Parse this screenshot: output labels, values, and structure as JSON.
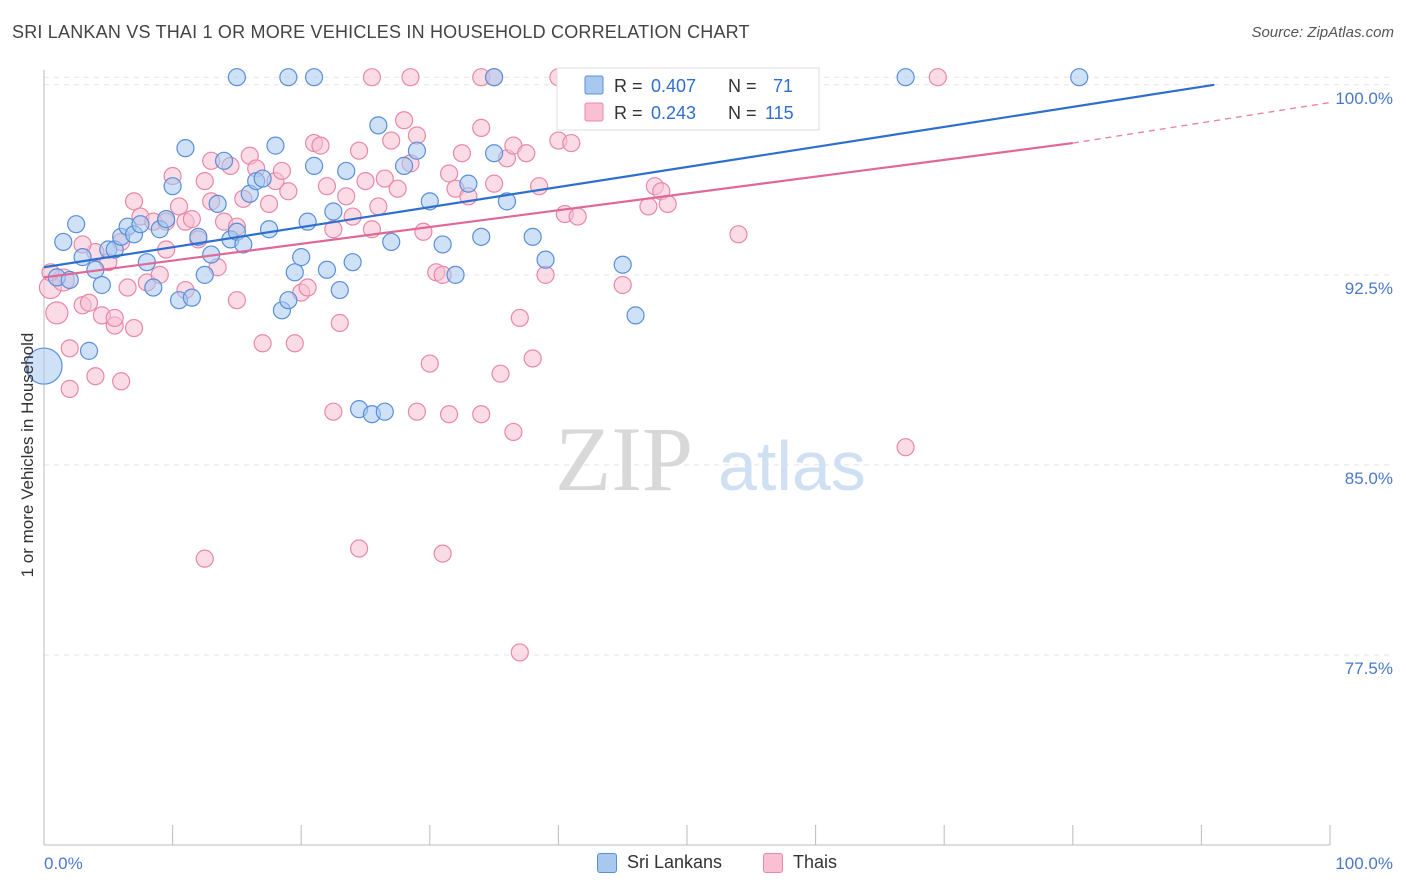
{
  "title": "SRI LANKAN VS THAI 1 OR MORE VEHICLES IN HOUSEHOLD CORRELATION CHART",
  "source": "Source: ZipAtlas.com",
  "watermark": {
    "zip": "ZIP",
    "atlas": "atlas"
  },
  "colors": {
    "blue_fill": "#a8c8f0",
    "blue_stroke": "#5a8fd8",
    "blue_line": "#2e6fce",
    "pink_fill": "#f8c0d2",
    "pink_stroke": "#e888a8",
    "pink_line": "#e06898",
    "tick_text": "#4a78c9"
  },
  "legend": {
    "r_label": "R =",
    "n_label": "N =",
    "entries": [
      {
        "r": "0.407",
        "n": "71",
        "color": "blue"
      },
      {
        "r": "0.243",
        "n": "115",
        "color": "pink"
      }
    ]
  },
  "bottom_legend": [
    {
      "label": "Sri Lankans",
      "color": "blue"
    },
    {
      "label": "Thais",
      "color": "pink"
    }
  ],
  "chart_data": {
    "type": "scatter",
    "title": "SRI LANKAN VS THAI 1 OR MORE VEHICLES IN HOUSEHOLD CORRELATION CHART",
    "xlabel": "",
    "ylabel": "1 or more Vehicles in Household",
    "xlim": [
      0,
      100
    ],
    "ylim": [
      70,
      100.9
    ],
    "x_tick_labels": [
      "0.0%",
      "100.0%"
    ],
    "y_ticks": [
      77.5,
      85.0,
      92.5,
      100.0
    ],
    "y_tick_labels": [
      "77.5%",
      "85.0%",
      "92.5%",
      "100.0%"
    ],
    "grid": true,
    "series": [
      {
        "name": "Sri Lankans",
        "color": "blue",
        "trend": {
          "x0": 0,
          "y0": 92.8,
          "x1": 91,
          "y1": 100.0,
          "dashed_to": null
        },
        "points": [
          [
            0.0,
            88.9
          ],
          [
            1.0,
            92.4
          ],
          [
            1.5,
            93.8
          ],
          [
            2.0,
            92.3
          ],
          [
            2.5,
            94.5
          ],
          [
            3.0,
            93.2
          ],
          [
            3.5,
            89.5
          ],
          [
            4.0,
            92.7
          ],
          [
            4.5,
            92.1
          ],
          [
            5.0,
            93.5
          ],
          [
            5.5,
            93.5
          ],
          [
            6.0,
            94.0
          ],
          [
            6.5,
            94.4
          ],
          [
            7.0,
            94.1
          ],
          [
            7.5,
            94.5
          ],
          [
            8.0,
            93.0
          ],
          [
            8.5,
            92.0
          ],
          [
            9.0,
            94.3
          ],
          [
            9.5,
            94.7
          ],
          [
            10.0,
            96.0
          ],
          [
            10.5,
            91.5
          ],
          [
            11.0,
            97.5
          ],
          [
            11.5,
            91.6
          ],
          [
            12.0,
            94.0
          ],
          [
            12.5,
            92.5
          ],
          [
            13.0,
            93.3
          ],
          [
            13.5,
            95.3
          ],
          [
            14.0,
            97.0
          ],
          [
            14.5,
            93.9
          ],
          [
            15.0,
            94.2
          ],
          [
            15.5,
            93.7
          ],
          [
            16.0,
            95.7
          ],
          [
            16.5,
            96.2
          ],
          [
            17.0,
            96.3
          ],
          [
            17.5,
            94.3
          ],
          [
            18.0,
            97.6
          ],
          [
            18.5,
            91.1
          ],
          [
            19.0,
            91.5
          ],
          [
            19.5,
            92.6
          ],
          [
            20.0,
            93.2
          ],
          [
            20.5,
            94.6
          ],
          [
            21.0,
            96.8
          ],
          [
            22.0,
            92.7
          ],
          [
            22.5,
            95.0
          ],
          [
            23.0,
            91.9
          ],
          [
            23.5,
            96.6
          ],
          [
            24.0,
            93.0
          ],
          [
            24.5,
            87.2
          ],
          [
            25.5,
            87.0
          ],
          [
            26.0,
            98.4
          ],
          [
            26.5,
            87.1
          ],
          [
            27.0,
            93.8
          ],
          [
            28.0,
            96.8
          ],
          [
            29.0,
            97.4
          ],
          [
            30.0,
            95.4
          ],
          [
            31.0,
            93.7
          ],
          [
            32.0,
            92.5
          ],
          [
            33.0,
            96.1
          ],
          [
            34.0,
            94.0
          ],
          [
            35.0,
            97.3
          ],
          [
            36.0,
            95.4
          ],
          [
            38.0,
            94.0
          ],
          [
            39.0,
            93.1
          ],
          [
            45.0,
            92.9
          ],
          [
            46.0,
            90.9
          ],
          [
            15.0,
            100.3
          ],
          [
            19.0,
            100.3
          ],
          [
            21.0,
            100.3
          ],
          [
            35.0,
            100.3
          ],
          [
            67.0,
            100.3
          ],
          [
            80.5,
            100.3
          ]
        ]
      },
      {
        "name": "Thais",
        "color": "pink",
        "trend": {
          "x0": 0,
          "y0": 92.4,
          "x1": 80,
          "y1": 97.7,
          "dashed_to": {
            "x": 100,
            "y": 99.3
          }
        },
        "points": [
          [
            0.5,
            92.0
          ],
          [
            1.0,
            91.0
          ],
          [
            1.5,
            92.3
          ],
          [
            2.0,
            89.6
          ],
          [
            2.0,
            88.0
          ],
          [
            3.0,
            91.3
          ],
          [
            3.5,
            91.4
          ],
          [
            4.0,
            93.4
          ],
          [
            4.0,
            88.5
          ],
          [
            4.5,
            90.9
          ],
          [
            5.0,
            93.0
          ],
          [
            5.5,
            90.5
          ],
          [
            5.5,
            90.8
          ],
          [
            6.0,
            93.8
          ],
          [
            6.0,
            88.3
          ],
          [
            6.5,
            92.0
          ],
          [
            7.0,
            95.4
          ],
          [
            7.0,
            90.4
          ],
          [
            7.5,
            94.8
          ],
          [
            8.0,
            92.2
          ],
          [
            8.5,
            94.6
          ],
          [
            9.0,
            92.5
          ],
          [
            9.5,
            93.5
          ],
          [
            9.5,
            94.6
          ],
          [
            10.0,
            96.4
          ],
          [
            10.5,
            95.2
          ],
          [
            11.0,
            94.6
          ],
          [
            11.0,
            91.9
          ],
          [
            11.5,
            94.7
          ],
          [
            12.0,
            93.9
          ],
          [
            12.5,
            96.2
          ],
          [
            13.0,
            97.0
          ],
          [
            13.0,
            95.4
          ],
          [
            13.5,
            92.8
          ],
          [
            14.0,
            94.6
          ],
          [
            14.5,
            96.8
          ],
          [
            15.0,
            94.4
          ],
          [
            15.0,
            91.5
          ],
          [
            15.5,
            95.5
          ],
          [
            16.0,
            97.2
          ],
          [
            16.5,
            96.7
          ],
          [
            17.0,
            89.8
          ],
          [
            17.5,
            95.3
          ],
          [
            18.0,
            96.2
          ],
          [
            18.5,
            96.6
          ],
          [
            19.0,
            95.8
          ],
          [
            19.5,
            89.8
          ],
          [
            20.0,
            91.8
          ],
          [
            20.5,
            92.0
          ],
          [
            21.0,
            97.7
          ],
          [
            21.5,
            97.6
          ],
          [
            22.0,
            96.0
          ],
          [
            22.5,
            94.3
          ],
          [
            23.0,
            90.6
          ],
          [
            23.5,
            95.6
          ],
          [
            24.0,
            94.8
          ],
          [
            24.5,
            97.4
          ],
          [
            25.0,
            96.2
          ],
          [
            25.5,
            94.3
          ],
          [
            26.0,
            95.2
          ],
          [
            26.5,
            96.3
          ],
          [
            27.0,
            97.8
          ],
          [
            27.5,
            95.9
          ],
          [
            28.0,
            98.6
          ],
          [
            28.5,
            96.9
          ],
          [
            29.0,
            98.0
          ],
          [
            29.5,
            94.2
          ],
          [
            30.0,
            89.0
          ],
          [
            30.5,
            92.6
          ],
          [
            31.0,
            92.5
          ],
          [
            31.5,
            96.5
          ],
          [
            32.0,
            95.9
          ],
          [
            32.5,
            97.3
          ],
          [
            33.0,
            95.6
          ],
          [
            34.0,
            98.3
          ],
          [
            35.0,
            96.1
          ],
          [
            35.5,
            88.6
          ],
          [
            36.0,
            97.1
          ],
          [
            36.5,
            97.6
          ],
          [
            37.0,
            90.8
          ],
          [
            37.5,
            97.3
          ],
          [
            38.0,
            89.2
          ],
          [
            38.5,
            96.0
          ],
          [
            39.0,
            92.5
          ],
          [
            40.0,
            97.8
          ],
          [
            40.5,
            94.9
          ],
          [
            41.0,
            97.7
          ],
          [
            41.5,
            94.8
          ],
          [
            45.0,
            92.1
          ],
          [
            47.0,
            95.2
          ],
          [
            47.5,
            96.0
          ],
          [
            48.0,
            95.8
          ],
          [
            48.5,
            95.3
          ],
          [
            54.0,
            94.1
          ],
          [
            22.5,
            87.1
          ],
          [
            29.0,
            87.1
          ],
          [
            31.5,
            87.0
          ],
          [
            34.0,
            87.0
          ],
          [
            36.5,
            86.3
          ],
          [
            67.0,
            85.7
          ],
          [
            12.5,
            81.3
          ],
          [
            24.5,
            81.7
          ],
          [
            31.0,
            81.5
          ],
          [
            37.0,
            77.6
          ],
          [
            25.5,
            100.3
          ],
          [
            28.5,
            100.3
          ],
          [
            34.0,
            100.3
          ],
          [
            35.0,
            100.3
          ],
          [
            40.0,
            100.3
          ],
          [
            41.0,
            100.3
          ],
          [
            44.0,
            100.3
          ],
          [
            52.0,
            100.3
          ],
          [
            69.5,
            100.3
          ],
          [
            0.5,
            92.6
          ],
          [
            3.0,
            93.7
          ]
        ]
      }
    ]
  }
}
